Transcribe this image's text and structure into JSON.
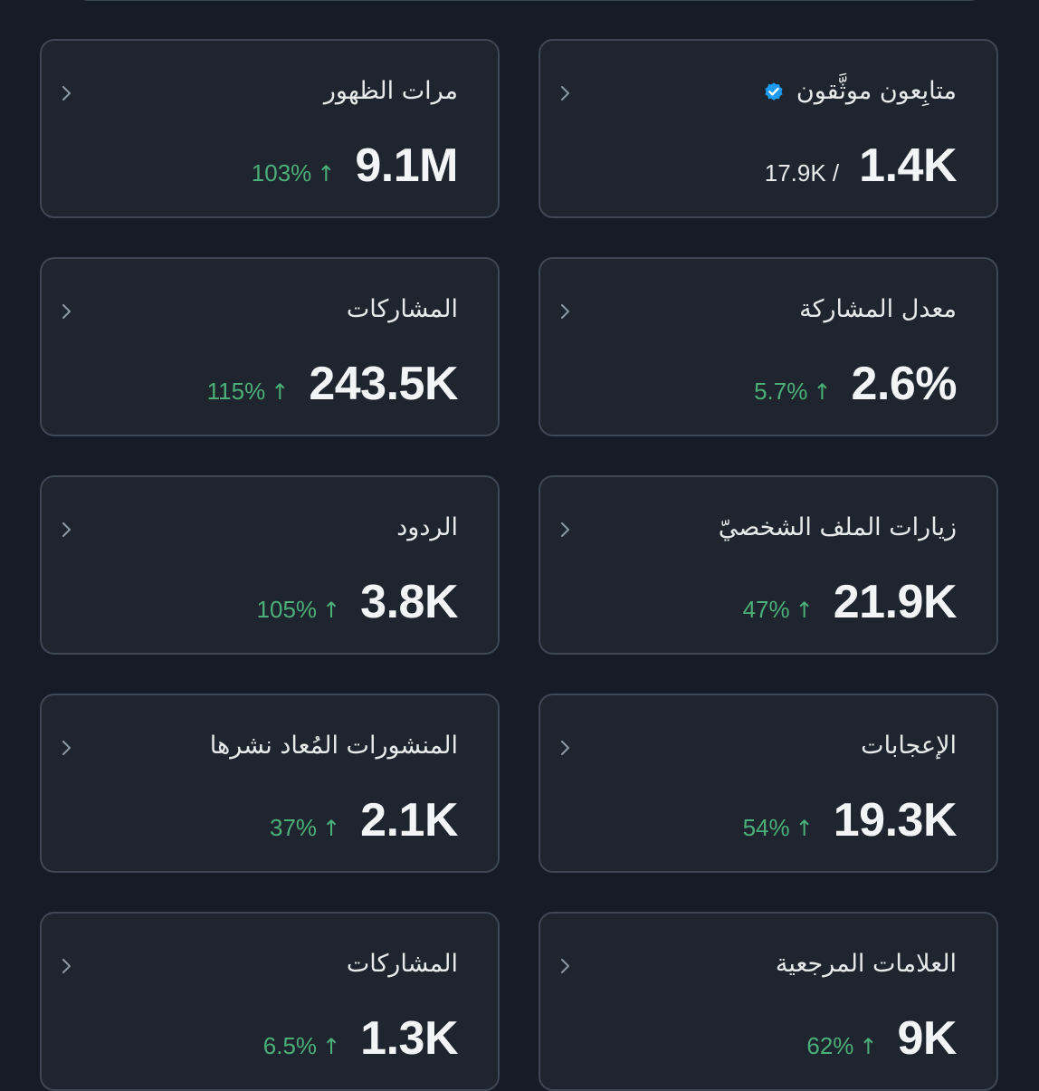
{
  "colors": {
    "background": "#151c27",
    "card": "#1e252f",
    "border": "#3d4755",
    "positive": "#4caf78",
    "verified": "#1d9bf0"
  },
  "cards": [
    {
      "title": "مرات الظهور",
      "value": "9.1M",
      "change": "103%",
      "arrow": "↑"
    },
    {
      "title": "متابِعون موثَّقون",
      "value": "1.4K",
      "secondary": "17.9K /",
      "verified_icon": "verified-badge-icon"
    },
    {
      "title": "المشاركات",
      "value": "243.5K",
      "change": "115%",
      "arrow": "↑"
    },
    {
      "title": "معدل المشاركة",
      "value": "2.6%",
      "change": "5.7%",
      "arrow": "↑"
    },
    {
      "title": "الردود",
      "value": "3.8K",
      "change": "105%",
      "arrow": "↑"
    },
    {
      "title": "زيارات الملف الشخصيّ",
      "value": "21.9K",
      "change": "47%",
      "arrow": "↑"
    },
    {
      "title": "المنشورات المُعاد نشرها",
      "value": "2.1K",
      "change": "37%",
      "arrow": "↑"
    },
    {
      "title": "الإعجابات",
      "value": "19.3K",
      "change": "54%",
      "arrow": "↑"
    },
    {
      "title": "المشاركات",
      "value": "1.3K",
      "change": "6.5%",
      "arrow": "↑"
    },
    {
      "title": "العلامات المرجعية",
      "value": "9K",
      "change": "62%",
      "arrow": "↑"
    }
  ]
}
